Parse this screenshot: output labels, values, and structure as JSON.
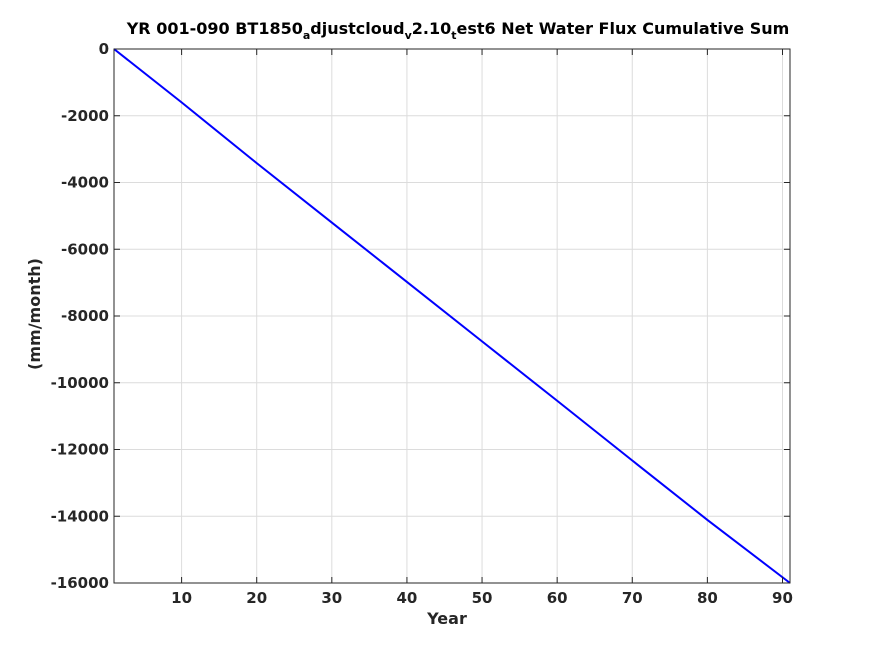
{
  "chart_data": {
    "type": "line",
    "title_parts": [
      {
        "text": "YR 001-090 BT1850",
        "sub": false
      },
      {
        "text": "a",
        "sub": true
      },
      {
        "text": "djustcloud",
        "sub": false
      },
      {
        "text": "v",
        "sub": true
      },
      {
        "text": "2.10",
        "sub": false
      },
      {
        "text": "t",
        "sub": true
      },
      {
        "text": "est6 Net Water Flux Cumulative Sum",
        "sub": false
      }
    ],
    "xlabel": "Year",
    "ylabel": "(mm/month)",
    "xlim": [
      1,
      91
    ],
    "ylim": [
      -16000,
      0
    ],
    "xticks": [
      10,
      20,
      30,
      40,
      50,
      60,
      70,
      80,
      90
    ],
    "yticks": [
      0,
      -2000,
      -4000,
      -6000,
      -8000,
      -10000,
      -12000,
      -14000,
      -16000
    ],
    "grid": true,
    "series": [
      {
        "color": "#0000ff",
        "x": [
          1,
          10,
          20,
          30,
          40,
          50,
          60,
          70,
          80,
          91
        ],
        "y": [
          0,
          -1600,
          -3420,
          -5200,
          -6980,
          -8760,
          -10540,
          -12330,
          -14110,
          -16000
        ]
      }
    ]
  }
}
